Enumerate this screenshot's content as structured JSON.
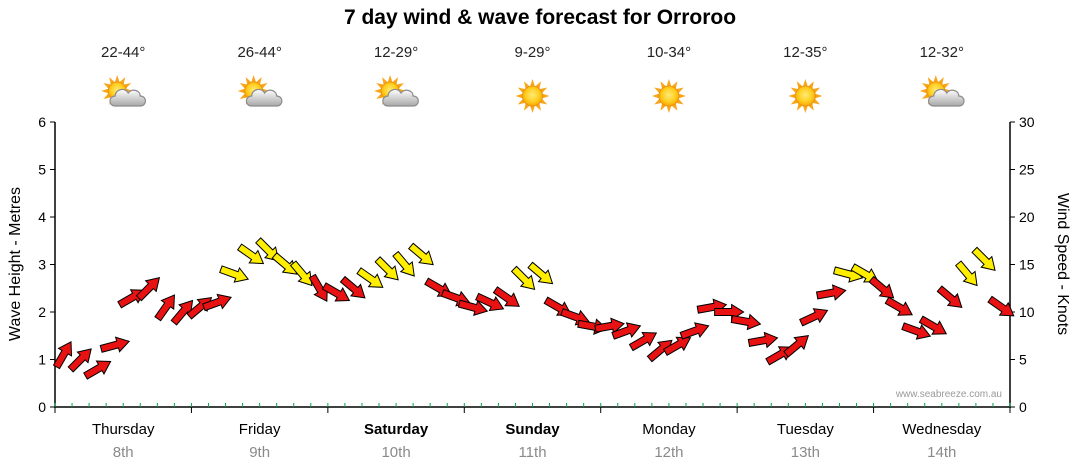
{
  "title": "7 day wind & wave forecast for Orroroo",
  "watermark": "www.seabreeze.com.au",
  "axes": {
    "left_label": "Wave Height - Metres",
    "right_label": "Wind Speed - Knots",
    "left_ticks": [
      0,
      1,
      2,
      3,
      4,
      5,
      6
    ],
    "right_ticks": [
      0,
      5,
      10,
      15,
      20,
      25,
      30
    ],
    "left_range": [
      0,
      6
    ],
    "right_range": [
      0,
      30
    ]
  },
  "days": [
    {
      "name": "Thursday",
      "date": "8th",
      "temp": "22-44°",
      "icon": "sun-cloud",
      "bold": false
    },
    {
      "name": "Friday",
      "date": "9th",
      "temp": "26-44°",
      "icon": "sun-cloud",
      "bold": false
    },
    {
      "name": "Saturday",
      "date": "10th",
      "temp": "12-29°",
      "icon": "sun-cloud",
      "bold": true
    },
    {
      "name": "Sunday",
      "date": "11th",
      "temp": "9-29°",
      "icon": "sun",
      "bold": true
    },
    {
      "name": "Monday",
      "date": "12th",
      "temp": "10-34°",
      "icon": "sun",
      "bold": false
    },
    {
      "name": "Tuesday",
      "date": "13th",
      "temp": "12-35°",
      "icon": "sun",
      "bold": false
    },
    {
      "name": "Wednesday",
      "date": "14th",
      "temp": "12-32°",
      "icon": "sun-cloud",
      "bold": false
    }
  ],
  "chart_data": {
    "type": "wind-arrows",
    "title": "7 day wind & wave forecast for Orroroo",
    "categories": [
      "Thursday 8th",
      "Friday 9th",
      "Saturday 10th",
      "Sunday 11th",
      "Monday 12th",
      "Tuesday 13th",
      "Wednesday 14th"
    ],
    "points_per_day": 8,
    "y_axis": "Wind Speed - Knots",
    "ylim": [
      0,
      30
    ],
    "secondary_axis": "Wave Height - Metres",
    "secondary_ylim": [
      0,
      6
    ],
    "legend_position": "none",
    "grid": false,
    "colors": {
      "red": "#e81212",
      "yellow": "#ffee00"
    },
    "points": [
      {
        "speed": 5.5,
        "dir": 300,
        "color": "red"
      },
      {
        "speed": 5,
        "dir": 315,
        "color": "red"
      },
      {
        "speed": 4,
        "dir": 330,
        "color": "red"
      },
      {
        "speed": 6.5,
        "dir": 345,
        "color": "red"
      },
      {
        "speed": 11.5,
        "dir": 330,
        "color": "red"
      },
      {
        "speed": 12.5,
        "dir": 315,
        "color": "red"
      },
      {
        "speed": 10.5,
        "dir": 305,
        "color": "red"
      },
      {
        "speed": 10,
        "dir": 310,
        "color": "red"
      },
      {
        "speed": 10.5,
        "dir": 320,
        "color": "red"
      },
      {
        "speed": 11,
        "dir": 340,
        "color": "red"
      },
      {
        "speed": 14,
        "dir": 20,
        "color": "yellow"
      },
      {
        "speed": 16,
        "dir": 35,
        "color": "yellow"
      },
      {
        "speed": 16.5,
        "dir": 45,
        "color": "yellow"
      },
      {
        "speed": 15,
        "dir": 40,
        "color": "yellow"
      },
      {
        "speed": 14,
        "dir": 50,
        "color": "yellow"
      },
      {
        "speed": 12.5,
        "dir": 60,
        "color": "red"
      },
      {
        "speed": 12,
        "dir": 30,
        "color": "red"
      },
      {
        "speed": 12.5,
        "dir": 40,
        "color": "red"
      },
      {
        "speed": 13.5,
        "dir": 35,
        "color": "yellow"
      },
      {
        "speed": 14.5,
        "dir": 45,
        "color": "yellow"
      },
      {
        "speed": 15,
        "dir": 50,
        "color": "yellow"
      },
      {
        "speed": 16,
        "dir": 40,
        "color": "yellow"
      },
      {
        "speed": 12.5,
        "dir": 30,
        "color": "red"
      },
      {
        "speed": 11.5,
        "dir": 20,
        "color": "red"
      },
      {
        "speed": 10.5,
        "dir": 15,
        "color": "red"
      },
      {
        "speed": 11,
        "dir": 25,
        "color": "red"
      },
      {
        "speed": 11.5,
        "dir": 35,
        "color": "red"
      },
      {
        "speed": 13.5,
        "dir": 45,
        "color": "yellow"
      },
      {
        "speed": 14,
        "dir": 40,
        "color": "yellow"
      },
      {
        "speed": 10.5,
        "dir": 30,
        "color": "red"
      },
      {
        "speed": 9.5,
        "dir": 20,
        "color": "red"
      },
      {
        "speed": 8.5,
        "dir": 10,
        "color": "red"
      },
      {
        "speed": 8.5,
        "dir": 350,
        "color": "red"
      },
      {
        "speed": 8,
        "dir": 340,
        "color": "red"
      },
      {
        "speed": 7,
        "dir": 330,
        "color": "red"
      },
      {
        "speed": 6,
        "dir": 320,
        "color": "red"
      },
      {
        "speed": 6.5,
        "dir": 330,
        "color": "red"
      },
      {
        "speed": 8,
        "dir": 340,
        "color": "red"
      },
      {
        "speed": 10.5,
        "dir": 350,
        "color": "red"
      },
      {
        "speed": 10,
        "dir": 0,
        "color": "red"
      },
      {
        "speed": 9,
        "dir": 10,
        "color": "red"
      },
      {
        "speed": 7,
        "dir": 350,
        "color": "red"
      },
      {
        "speed": 5.5,
        "dir": 330,
        "color": "red"
      },
      {
        "speed": 6.5,
        "dir": 320,
        "color": "red"
      },
      {
        "speed": 9.5,
        "dir": 335,
        "color": "red"
      },
      {
        "speed": 12,
        "dir": 350,
        "color": "red"
      },
      {
        "speed": 14,
        "dir": 15,
        "color": "yellow"
      },
      {
        "speed": 14,
        "dir": 30,
        "color": "yellow"
      },
      {
        "speed": 12.5,
        "dir": 40,
        "color": "red"
      },
      {
        "speed": 10.5,
        "dir": 30,
        "color": "red"
      },
      {
        "speed": 8,
        "dir": 20,
        "color": "red"
      },
      {
        "speed": 8.5,
        "dir": 30,
        "color": "red"
      },
      {
        "speed": 11.5,
        "dir": 40,
        "color": "red"
      },
      {
        "speed": 14,
        "dir": 50,
        "color": "yellow"
      },
      {
        "speed": 15.5,
        "dir": 45,
        "color": "yellow"
      },
      {
        "speed": 10.5,
        "dir": 35,
        "color": "red"
      }
    ]
  }
}
